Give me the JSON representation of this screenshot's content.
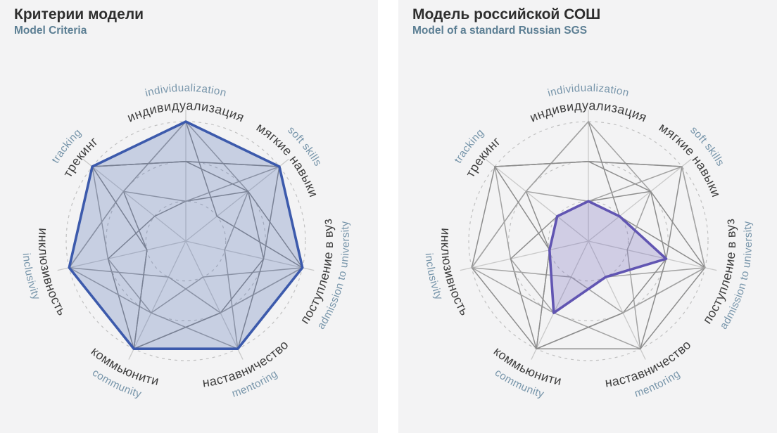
{
  "colors": {
    "page_background": "#ffffff",
    "panel_background": "#f3f3f4",
    "title_text": "#2e2e2e",
    "subtitle_text": "#5b7e93",
    "axis_label_ru": "#3f3f3f",
    "axis_label_en": "#7795aa",
    "grid_ring": "#c1c1c1",
    "axis_spoke": "#c9c9c9",
    "mesh_dark": "#8d8d8d",
    "mesh_light": "#a3a3a3",
    "left_highlight": "#3c5aac",
    "right_highlight": "#6155b2"
  },
  "chart_data": [
    {
      "type": "radar",
      "title": "Критерии модели",
      "subtitle": "Model Criteria",
      "categories_ru": [
        "индивидуализация",
        "мягкие навыки",
        "поступление в вуз",
        "наставничество",
        "коммьюнити",
        "инклюзивность",
        "трекинг"
      ],
      "categories_en": [
        "individualization",
        "soft skills",
        "admission to university",
        "mentoring",
        "community",
        "inclusivity",
        "tracking"
      ],
      "scale": {
        "min": 0,
        "max": 3,
        "grid_rings": [
          1,
          2,
          3
        ],
        "grid_style": "dashed-circles"
      },
      "legend": "none",
      "series": [
        {
          "name": "Критерии модели (highlight)",
          "values": [
            3,
            3,
            3,
            3,
            3,
            3,
            3
          ]
        }
      ],
      "color": "#3c5aac",
      "fill": "rgba(60,90,172,0.24)",
      "background_series": [
        [
          3,
          1,
          3,
          2,
          3,
          1,
          2
        ],
        [
          2,
          3,
          3,
          1,
          2,
          2,
          3
        ],
        [
          1,
          2,
          3,
          3,
          3,
          2,
          1
        ],
        [
          3,
          2,
          1,
          3,
          2,
          3,
          2
        ],
        [
          2,
          3,
          2,
          2,
          3,
          3,
          3
        ],
        [
          1,
          3,
          3,
          2,
          1,
          3,
          2
        ],
        [
          2,
          2,
          2,
          3,
          3,
          1,
          3
        ]
      ]
    },
    {
      "type": "radar",
      "title": "Модель российской СОШ",
      "subtitle": "Model of a standard Russian SGS",
      "categories_ru": [
        "индивидуализация",
        "мягкие навыки",
        "поступление в вуз",
        "наставничество",
        "коммьюнити",
        "инклюзивность",
        "трекинг"
      ],
      "categories_en": [
        "individualization",
        "soft skills",
        "admission to university",
        "mentoring",
        "community",
        "inclusivity",
        "tracking"
      ],
      "scale": {
        "min": 0,
        "max": 3,
        "grid_rings": [
          1,
          2,
          3
        ],
        "grid_style": "dashed-circles"
      },
      "legend": "none",
      "series": [
        {
          "name": "Российская СОШ (highlight)",
          "values": [
            1,
            1,
            2,
            1,
            2,
            1,
            1
          ]
        }
      ],
      "color": "#6155b2",
      "fill": "rgba(97,85,178,0.24)",
      "background_series": [
        [
          3,
          1,
          3,
          2,
          3,
          1,
          2
        ],
        [
          2,
          3,
          3,
          1,
          2,
          2,
          3
        ],
        [
          1,
          2,
          3,
          3,
          3,
          2,
          1
        ],
        [
          3,
          2,
          1,
          3,
          2,
          3,
          2
        ],
        [
          2,
          3,
          2,
          2,
          3,
          3,
          3
        ],
        [
          1,
          3,
          3,
          2,
          1,
          3,
          2
        ],
        [
          2,
          2,
          2,
          3,
          3,
          1,
          3
        ]
      ]
    }
  ]
}
